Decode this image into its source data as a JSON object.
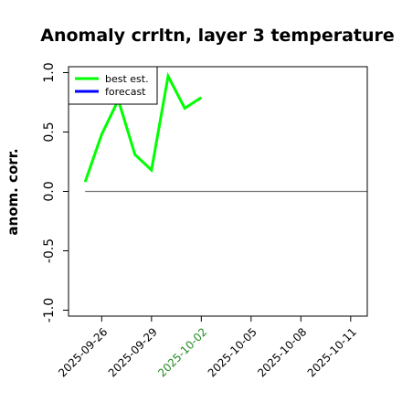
{
  "chart_data": {
    "type": "line",
    "title": "Anomaly crrltn, layer 3 temperature",
    "xlabel": "",
    "ylabel": "anom. corr.",
    "xlim": [
      "2025-09-24",
      "2025-10-12"
    ],
    "ylim": [
      -1.05,
      1.05
    ],
    "yticks": [
      -1.0,
      -0.5,
      0.0,
      0.5,
      1.0
    ],
    "yticklabels": [
      "-1.0",
      "-0.5",
      "0.0",
      "0.5",
      "1.0"
    ],
    "xticks": [
      "2025-09-26",
      "2025-09-29",
      "2025-10-02",
      "2025-10-05",
      "2025-10-08",
      "2025-10-11"
    ],
    "xticklabels": [
      "2025-09-26",
      "2025-09-29",
      "2025-10-02",
      "2025-10-05",
      "2025-10-08",
      "2025-10-11"
    ],
    "highlight_tick": "2025-10-02",
    "highlight_color": "#228B22",
    "grid": false,
    "zero_line": {
      "y": 0.0,
      "x_start": "2025-09-25",
      "x_end": "2025-10-12",
      "color": "#707070"
    },
    "legend": {
      "location": "top-left",
      "entries": [
        {
          "label": "best est.",
          "color": "#00ff00"
        },
        {
          "label": "forecast",
          "color": "#0000ff"
        }
      ]
    },
    "series": [
      {
        "name": "best est.",
        "color": "#00ff00",
        "x": [
          "2025-09-25",
          "2025-09-26",
          "2025-09-27",
          "2025-09-28",
          "2025-09-29",
          "2025-09-30",
          "2025-10-01",
          "2025-10-02"
        ],
        "y": [
          0.08,
          0.48,
          0.77,
          0.31,
          0.18,
          0.97,
          0.7,
          0.79
        ]
      },
      {
        "name": "forecast",
        "color": "#0000ff",
        "x": [],
        "y": []
      }
    ]
  }
}
